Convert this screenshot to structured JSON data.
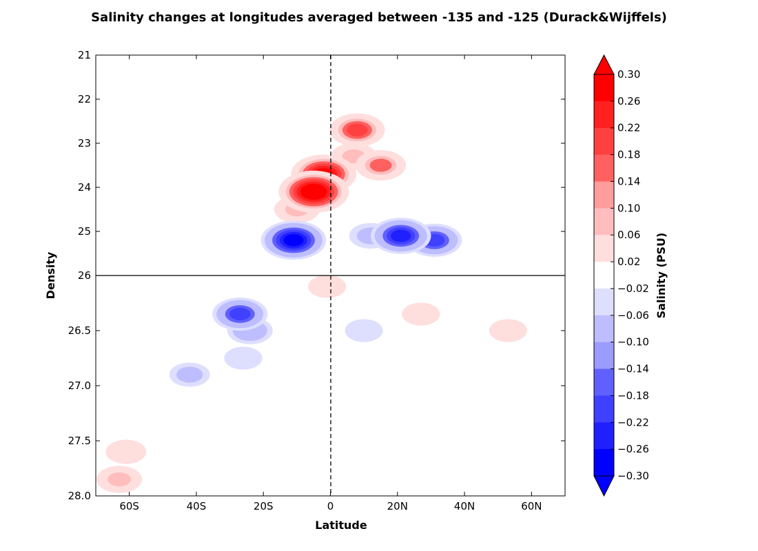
{
  "chart_data": {
    "type": "heatmap",
    "subtype": "filled-contour",
    "title": "Salinity changes at longitudes averaged between -135 and -125 (Durack&Wijffels)",
    "xlabel": "Latitude",
    "ylabel": "Density",
    "xlim": [
      -70,
      70
    ],
    "x_ticks": [
      {
        "value": -60,
        "label": "60S"
      },
      {
        "value": -40,
        "label": "40S"
      },
      {
        "value": -20,
        "label": "20S"
      },
      {
        "value": 0,
        "label": "0"
      },
      {
        "value": 20,
        "label": "20N"
      },
      {
        "value": 40,
        "label": "40N"
      },
      {
        "value": 60,
        "label": "60N"
      }
    ],
    "y_axis": "split linear, inverted (21-26 upper, 26-28 lower)",
    "y_ticks_upper": [
      "21",
      "22",
      "23",
      "24",
      "25",
      "26"
    ],
    "y_ticks_lower": [
      "26.5",
      "27.0",
      "27.5",
      "28.0"
    ],
    "reference_lines": {
      "vertical_dashed_at_latitude": 0,
      "horizontal_solid_at_density": 26
    },
    "colorbar": {
      "label": "Salinity (PSU)",
      "extend": "both",
      "tick_labels": [
        "0.30",
        "0.26",
        "0.22",
        "0.18",
        "0.14",
        "0.10",
        "0.06",
        "0.02",
        "−0.02",
        "−0.06",
        "−0.10",
        "−0.14",
        "−0.18",
        "−0.22",
        "−0.26",
        "−0.30"
      ],
      "colors": [
        "#ff0000",
        "#ff2020",
        "#ff4040",
        "#ff6060",
        "#ff9c9c",
        "#ffbdbd",
        "#ffdede",
        "#ffffff",
        "#dedeff",
        "#bdbdff",
        "#9c9cff",
        "#6060ff",
        "#4040ff",
        "#2020ff",
        "#0000ff"
      ],
      "extend_colors": {
        "high": "#ff0000",
        "low": "#0000ff"
      }
    },
    "features": [
      {
        "lat": -5,
        "density": 24.1,
        "value": 0.3
      },
      {
        "lat": -2,
        "density": 23.7,
        "value": 0.26
      },
      {
        "lat": -10,
        "density": 24.5,
        "value": 0.1
      },
      {
        "lat": -11,
        "density": 25.2,
        "value": -0.26
      },
      {
        "lat": -27,
        "density": 26.35,
        "value": -0.18
      },
      {
        "lat": -24,
        "density": 26.5,
        "value": -0.1
      },
      {
        "lat": -26,
        "density": 26.75,
        "value": -0.04
      },
      {
        "lat": -42,
        "density": 26.9,
        "value": -0.06
      },
      {
        "lat": 7,
        "density": 23.3,
        "value": 0.1
      },
      {
        "lat": 8,
        "density": 22.7,
        "value": 0.18
      },
      {
        "lat": 15,
        "density": 23.5,
        "value": 0.14
      },
      {
        "lat": 21,
        "density": 25.1,
        "value": -0.22
      },
      {
        "lat": 31,
        "density": 25.2,
        "value": -0.18
      },
      {
        "lat": 12,
        "density": 25.1,
        "value": -0.08
      },
      {
        "lat": 10,
        "density": 26.5,
        "value": -0.04
      },
      {
        "lat": 27,
        "density": 26.35,
        "value": 0.04
      },
      {
        "lat": 53,
        "density": 26.5,
        "value": 0.04
      },
      {
        "lat": -1,
        "density": 26.1,
        "value": 0.04
      },
      {
        "lat": -61,
        "density": 27.6,
        "value": 0.06
      },
      {
        "lat": -63,
        "density": 27.85,
        "value": 0.1
      }
    ]
  }
}
